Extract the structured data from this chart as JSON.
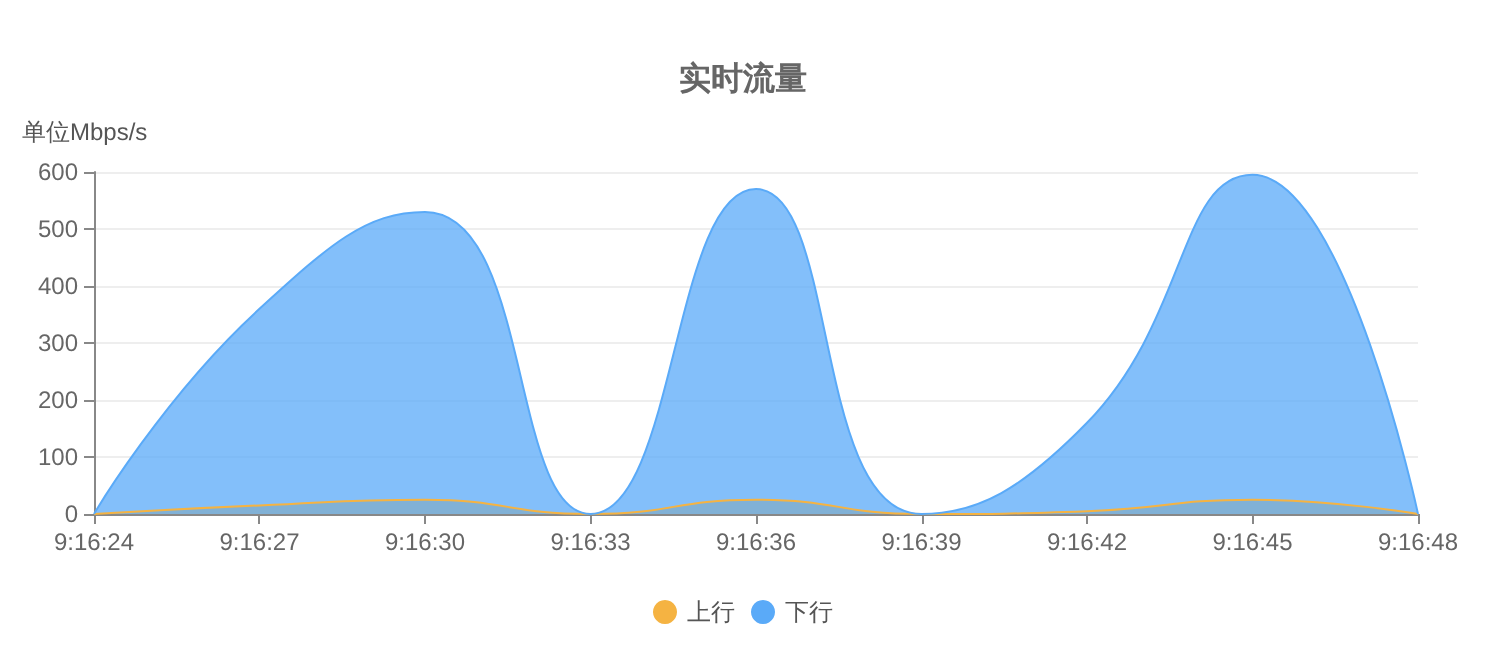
{
  "chart_data": {
    "type": "area",
    "title": "实时流量",
    "ylabel": "单位Mbps/s",
    "categories": [
      "9:16:24",
      "9:16:27",
      "9:16:30",
      "9:16:33",
      "9:16:36",
      "9:16:39",
      "9:16:42",
      "9:16:45",
      "9:16:48"
    ],
    "series": [
      {
        "name": "上行",
        "color": "#f5b342",
        "values": [
          0,
          15,
          25,
          0,
          25,
          0,
          5,
          25,
          0
        ]
      },
      {
        "name": "下行",
        "color": "#5aaaf8",
        "values": [
          0,
          360,
          530,
          0,
          570,
          0,
          160,
          595,
          0
        ]
      }
    ],
    "ylim": [
      0,
      600
    ],
    "yticks": [
      0,
      100,
      200,
      300,
      400,
      500,
      600
    ],
    "grid": "y",
    "legend": "bottom",
    "marker": "none",
    "line_style": "solid"
  }
}
